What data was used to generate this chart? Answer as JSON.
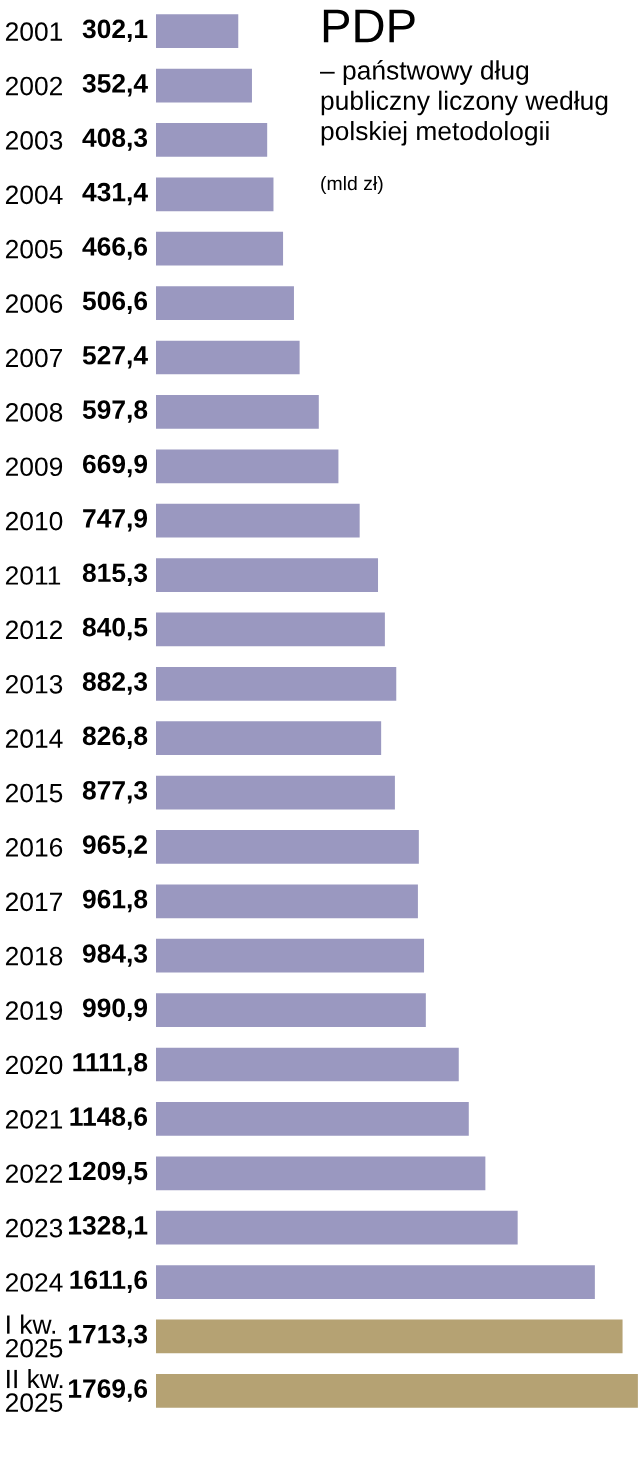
{
  "chart_data": {
    "type": "bar",
    "orientation": "horizontal",
    "title": "PDP",
    "subtitle": "– państwowy dług publiczny liczony według polskiej metodologii",
    "annotations": [
      "(mld zł)"
    ],
    "categories": [
      "2001",
      "2002",
      "2003",
      "2004",
      "2005",
      "2006",
      "2007",
      "2008",
      "2009",
      "2010",
      "2011",
      "2012",
      "2013",
      "2014",
      "2015",
      "2016",
      "2017",
      "2018",
      "2019",
      "2020",
      "2021",
      "2022",
      "2023",
      "2024",
      "I kw.\n2025",
      "II kw.\n2025"
    ],
    "values": [
      302.1,
      352.4,
      408.3,
      431.4,
      466.6,
      506.6,
      527.4,
      597.8,
      669.9,
      747.9,
      815.3,
      840.5,
      882.3,
      826.8,
      877.3,
      965.2,
      961.8,
      984.3,
      990.9,
      1111.8,
      1148.6,
      1209.5,
      1328.1,
      1611.6,
      1713.3,
      1769.6
    ],
    "value_labels": [
      "302,1",
      "352,4",
      "408,3",
      "431,4",
      "466,6",
      "506,6",
      "527,4",
      "597,8",
      "669,9",
      "747,9",
      "815,3",
      "840,5",
      "882,3",
      "826,8",
      "877,3",
      "965,2",
      "961,8",
      "984,3",
      "990,9",
      "1111,8",
      "1148,6",
      "1209,5",
      "1328,1",
      "1611,6",
      "1713,3",
      "1769,6"
    ],
    "colors": [
      "#9a98c0",
      "#9a98c0",
      "#9a98c0",
      "#9a98c0",
      "#9a98c0",
      "#9a98c0",
      "#9a98c0",
      "#9a98c0",
      "#9a98c0",
      "#9a98c0",
      "#9a98c0",
      "#9a98c0",
      "#9a98c0",
      "#9a98c0",
      "#9a98c0",
      "#9a98c0",
      "#9a98c0",
      "#9a98c0",
      "#9a98c0",
      "#9a98c0",
      "#9a98c0",
      "#9a98c0",
      "#9a98c0",
      "#9a98c0",
      "#b5a273",
      "#b5a273"
    ],
    "xlim": [
      0,
      1770
    ],
    "legend": false,
    "grid": false
  }
}
